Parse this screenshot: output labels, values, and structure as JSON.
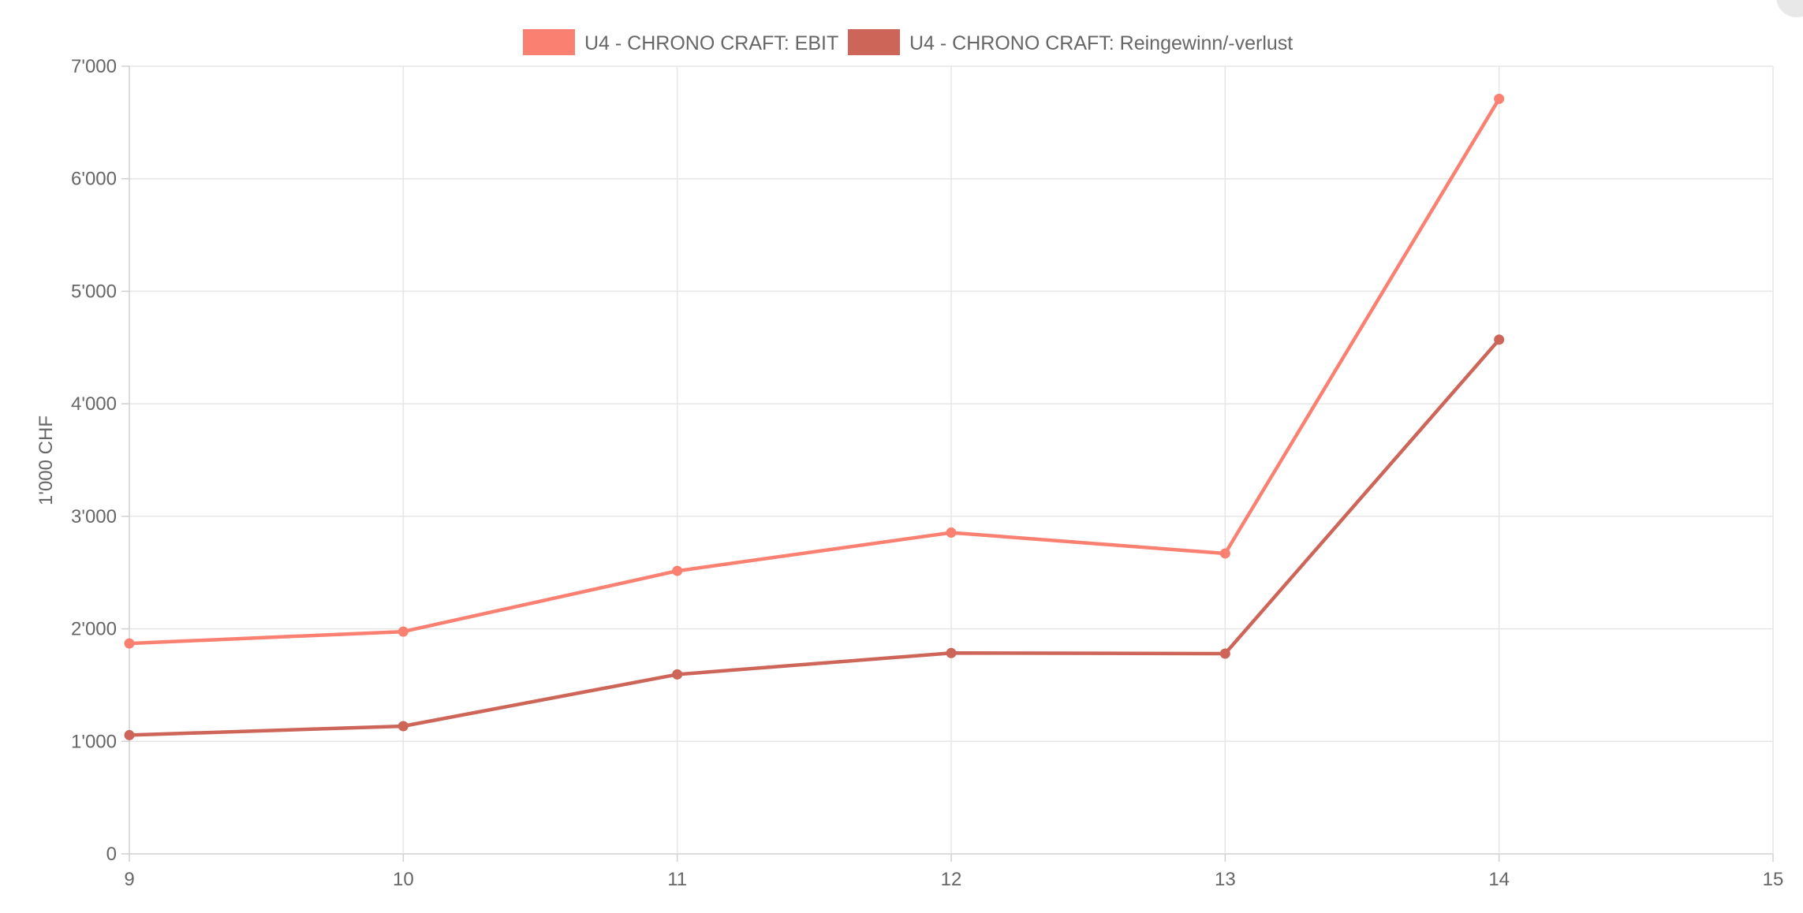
{
  "chart_data": {
    "type": "line",
    "title": "",
    "xlabel": "",
    "ylabel": "1'000 CHF",
    "x": [
      9,
      10,
      11,
      12,
      13,
      14
    ],
    "x_ticks": [
      "9",
      "10",
      "11",
      "12",
      "13",
      "14",
      "15"
    ],
    "xlim": [
      9,
      15
    ],
    "ylim": [
      0,
      7000
    ],
    "y_ticks": [
      0,
      1000,
      2000,
      3000,
      4000,
      5000,
      6000,
      7000
    ],
    "y_tick_labels": [
      "0",
      "1'000",
      "2'000",
      "3'000",
      "4'000",
      "5'000",
      "6'000",
      "7'000"
    ],
    "grid": true,
    "legend_position": "top",
    "series": [
      {
        "name": "U4 - CHRONO CRAFT: EBIT",
        "color": "#fa8072",
        "values": [
          1870,
          1975,
          2515,
          2855,
          2670,
          6710
        ]
      },
      {
        "name": "U4 - CHRONO CRAFT: Reingewinn/-verlust",
        "color": "#cd6558",
        "values": [
          1055,
          1135,
          1595,
          1785,
          1780,
          4570
        ]
      }
    ]
  }
}
